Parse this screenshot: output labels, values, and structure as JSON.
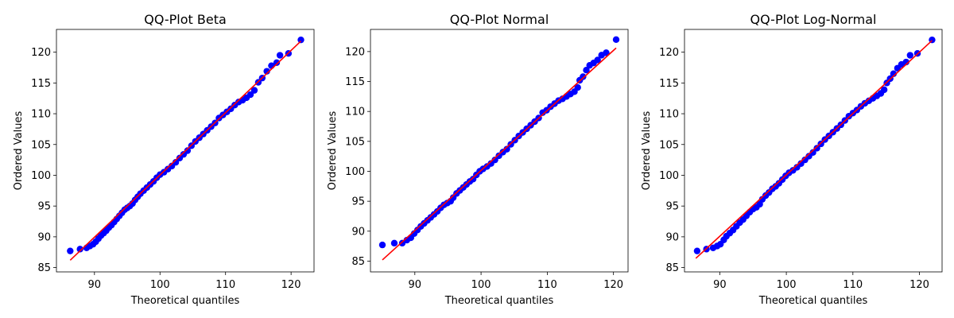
{
  "colors": {
    "points": "#0000ff",
    "fit_line": "#ff0000",
    "axes": "#000000",
    "background": "#ffffff"
  },
  "chart_data": [
    {
      "type": "scatter",
      "title": "QQ-Plot Beta",
      "xlabel": "Theoretical quantiles",
      "ylabel": "Ordered Values",
      "xlim": [
        84.2,
        123.5
      ],
      "ylim": [
        84.3,
        123.7
      ],
      "xticks": [
        90,
        100,
        110,
        120
      ],
      "yticks": [
        85,
        90,
        95,
        100,
        105,
        110,
        115,
        120
      ],
      "grid": false,
      "fit_line": {
        "x": [
          86.3,
          121.5
        ],
        "y": [
          86.2,
          121.8
        ]
      },
      "points": [
        [
          86.3,
          87.7
        ],
        [
          87.8,
          88.0
        ],
        [
          88.8,
          88.2
        ],
        [
          89.3,
          88.5
        ],
        [
          89.8,
          88.8
        ],
        [
          90.2,
          89.2
        ],
        [
          90.6,
          89.7
        ],
        [
          91.0,
          90.2
        ],
        [
          91.4,
          90.6
        ],
        [
          91.8,
          91.0
        ],
        [
          92.2,
          91.5
        ],
        [
          92.6,
          91.9
        ],
        [
          93.0,
          92.4
        ],
        [
          93.4,
          92.9
        ],
        [
          93.8,
          93.4
        ],
        [
          94.2,
          93.9
        ],
        [
          94.6,
          94.4
        ],
        [
          95.0,
          94.7
        ],
        [
          95.4,
          95.0
        ],
        [
          95.8,
          95.4
        ],
        [
          96.2,
          96.0
        ],
        [
          96.6,
          96.5
        ],
        [
          97.0,
          97.0
        ],
        [
          97.5,
          97.5
        ],
        [
          98.0,
          98.0
        ],
        [
          98.5,
          98.5
        ],
        [
          99.0,
          99.0
        ],
        [
          99.5,
          99.6
        ],
        [
          100.0,
          100.1
        ],
        [
          100.6,
          100.5
        ],
        [
          101.2,
          101.0
        ],
        [
          101.8,
          101.5
        ],
        [
          102.4,
          102.1
        ],
        [
          103.0,
          102.8
        ],
        [
          103.6,
          103.4
        ],
        [
          104.2,
          104.0
        ],
        [
          104.8,
          104.8
        ],
        [
          105.4,
          105.5
        ],
        [
          106.0,
          106.1
        ],
        [
          106.6,
          106.7
        ],
        [
          107.2,
          107.3
        ],
        [
          107.8,
          107.9
        ],
        [
          108.4,
          108.5
        ],
        [
          109.0,
          109.3
        ],
        [
          109.6,
          109.8
        ],
        [
          110.2,
          110.3
        ],
        [
          110.8,
          110.8
        ],
        [
          111.4,
          111.4
        ],
        [
          112.0,
          111.9
        ],
        [
          112.6,
          112.2
        ],
        [
          113.2,
          112.6
        ],
        [
          113.8,
          113.1
        ],
        [
          114.4,
          113.8
        ],
        [
          115.0,
          115.1
        ],
        [
          115.6,
          115.8
        ],
        [
          116.3,
          116.9
        ],
        [
          117.0,
          117.8
        ],
        [
          117.8,
          118.3
        ],
        [
          118.3,
          119.5
        ],
        [
          119.6,
          119.8
        ],
        [
          121.5,
          122.0
        ]
      ]
    },
    {
      "type": "scatter",
      "title": "QQ-Plot Normal",
      "xlabel": "Theoretical quantiles",
      "ylabel": "Ordered Values",
      "xlim": [
        83.3,
        122.2
      ],
      "ylim": [
        83.2,
        123.7
      ],
      "xticks": [
        90,
        100,
        110,
        120
      ],
      "yticks": [
        85,
        90,
        95,
        100,
        105,
        110,
        115,
        120
      ],
      "grid": false,
      "fit_line": {
        "x": [
          85.1,
          120.4
        ],
        "y": [
          85.2,
          120.6
        ]
      },
      "points": [
        [
          85.1,
          87.7
        ],
        [
          86.9,
          88.0
        ],
        [
          88.1,
          88.0
        ],
        [
          88.8,
          88.5
        ],
        [
          89.4,
          88.9
        ],
        [
          89.9,
          89.6
        ],
        [
          90.4,
          90.2
        ],
        [
          90.9,
          90.8
        ],
        [
          91.4,
          91.3
        ],
        [
          91.9,
          91.8
        ],
        [
          92.4,
          92.3
        ],
        [
          92.9,
          92.8
        ],
        [
          93.4,
          93.3
        ],
        [
          93.9,
          93.9
        ],
        [
          94.4,
          94.4
        ],
        [
          94.9,
          94.7
        ],
        [
          95.4,
          95.0
        ],
        [
          95.8,
          95.6
        ],
        [
          96.3,
          96.3
        ],
        [
          96.8,
          96.8
        ],
        [
          97.3,
          97.3
        ],
        [
          97.8,
          97.8
        ],
        [
          98.3,
          98.3
        ],
        [
          98.8,
          98.7
        ],
        [
          99.3,
          99.4
        ],
        [
          99.8,
          100.0
        ],
        [
          100.3,
          100.4
        ],
        [
          100.9,
          100.8
        ],
        [
          101.5,
          101.3
        ],
        [
          102.1,
          101.9
        ],
        [
          102.7,
          102.6
        ],
        [
          103.3,
          103.2
        ],
        [
          103.9,
          103.7
        ],
        [
          104.5,
          104.5
        ],
        [
          105.1,
          105.2
        ],
        [
          105.7,
          105.9
        ],
        [
          106.3,
          106.5
        ],
        [
          106.9,
          107.1
        ],
        [
          107.5,
          107.7
        ],
        [
          108.1,
          108.3
        ],
        [
          108.7,
          108.9
        ],
        [
          109.3,
          109.8
        ],
        [
          109.9,
          110.2
        ],
        [
          110.5,
          110.8
        ],
        [
          111.1,
          111.3
        ],
        [
          111.7,
          111.8
        ],
        [
          112.3,
          112.1
        ],
        [
          112.9,
          112.5
        ],
        [
          113.5,
          112.9
        ],
        [
          114.1,
          113.3
        ],
        [
          114.6,
          114.0
        ],
        [
          114.9,
          115.2
        ],
        [
          115.4,
          115.8
        ],
        [
          115.9,
          116.9
        ],
        [
          116.4,
          117.7
        ],
        [
          117.0,
          118.1
        ],
        [
          117.6,
          118.6
        ],
        [
          118.2,
          119.4
        ],
        [
          118.9,
          119.8
        ],
        [
          120.4,
          122.0
        ]
      ]
    },
    {
      "type": "scatter",
      "title": "QQ-Plot Log-Normal",
      "xlabel": "Theoretical quantiles",
      "ylabel": "Ordered Values",
      "xlim": [
        84.7,
        123.4
      ],
      "ylim": [
        84.3,
        123.7
      ],
      "xticks": [
        90,
        100,
        110,
        120
      ],
      "yticks": [
        85,
        90,
        95,
        100,
        105,
        110,
        115,
        120
      ],
      "grid": false,
      "fit_line": {
        "x": [
          86.4,
          121.9
        ],
        "y": [
          86.5,
          121.9
        ]
      },
      "points": [
        [
          86.6,
          87.7
        ],
        [
          88.0,
          88.0
        ],
        [
          89.0,
          88.2
        ],
        [
          89.6,
          88.5
        ],
        [
          90.1,
          88.8
        ],
        [
          90.6,
          89.5
        ],
        [
          91.0,
          90.1
        ],
        [
          91.5,
          90.6
        ],
        [
          92.0,
          91.1
        ],
        [
          92.5,
          91.7
        ],
        [
          93.0,
          92.3
        ],
        [
          93.5,
          92.8
        ],
        [
          94.0,
          93.4
        ],
        [
          94.5,
          94.0
        ],
        [
          95.0,
          94.5
        ],
        [
          95.5,
          94.8
        ],
        [
          96.0,
          95.3
        ],
        [
          96.4,
          96.1
        ],
        [
          96.9,
          96.7
        ],
        [
          97.4,
          97.2
        ],
        [
          97.9,
          97.8
        ],
        [
          98.4,
          98.2
        ],
        [
          98.9,
          98.7
        ],
        [
          99.4,
          99.3
        ],
        [
          99.9,
          99.9
        ],
        [
          100.4,
          100.4
        ],
        [
          101.0,
          100.8
        ],
        [
          101.6,
          101.3
        ],
        [
          102.2,
          101.9
        ],
        [
          102.8,
          102.5
        ],
        [
          103.4,
          103.1
        ],
        [
          104.0,
          103.7
        ],
        [
          104.6,
          104.4
        ],
        [
          105.2,
          105.1
        ],
        [
          105.8,
          105.8
        ],
        [
          106.4,
          106.4
        ],
        [
          107.0,
          107.0
        ],
        [
          107.6,
          107.6
        ],
        [
          108.2,
          108.2
        ],
        [
          108.8,
          108.9
        ],
        [
          109.4,
          109.6
        ],
        [
          110.0,
          110.1
        ],
        [
          110.6,
          110.6
        ],
        [
          111.2,
          111.2
        ],
        [
          111.8,
          111.7
        ],
        [
          112.4,
          112.1
        ],
        [
          113.0,
          112.5
        ],
        [
          113.6,
          112.9
        ],
        [
          114.2,
          113.3
        ],
        [
          114.7,
          113.9
        ],
        [
          115.1,
          115.0
        ],
        [
          115.6,
          115.7
        ],
        [
          116.1,
          116.5
        ],
        [
          116.7,
          117.4
        ],
        [
          117.3,
          118.0
        ],
        [
          118.0,
          118.4
        ],
        [
          118.6,
          119.5
        ],
        [
          119.7,
          119.8
        ],
        [
          121.9,
          122.0
        ]
      ]
    }
  ]
}
